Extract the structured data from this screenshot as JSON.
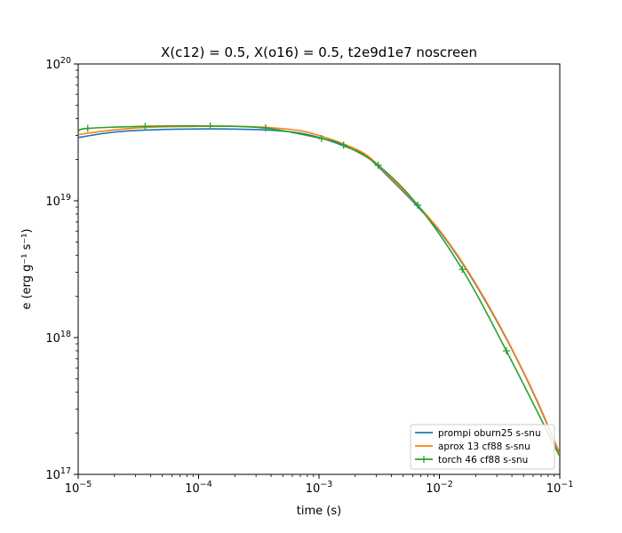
{
  "chart_data": {
    "type": "line",
    "title": "X(c12) = 0.5, X(o16) = 0.5, t2e9d1e7 noscreen",
    "xlabel": "time (s)",
    "ylabel": "e (erg g⁻¹ s⁻¹)",
    "xscale": "log",
    "yscale": "log",
    "xlim": [
      1e-05,
      0.1
    ],
    "ylim": [
      1e+17,
      1e+20
    ],
    "grid": false,
    "legend_position": "lower right",
    "x_ticks": [
      {
        "value": 1e-05,
        "base": "10",
        "exp": "−5"
      },
      {
        "value": 0.0001,
        "base": "10",
        "exp": "−4"
      },
      {
        "value": 0.001,
        "base": "10",
        "exp": "−3"
      },
      {
        "value": 0.01,
        "base": "10",
        "exp": "−2"
      },
      {
        "value": 0.1,
        "base": "10",
        "exp": "−1"
      }
    ],
    "y_ticks": [
      {
        "value": 1e+17,
        "base": "10",
        "exp": "17"
      },
      {
        "value": 1e+18,
        "base": "10",
        "exp": "18"
      },
      {
        "value": 1e+19,
        "base": "10",
        "exp": "19"
      },
      {
        "value": 1e+20,
        "base": "10",
        "exp": "20"
      }
    ],
    "series": [
      {
        "name": "prompi oburn25 s-snu",
        "color": "#1f77b4",
        "marker": "none",
        "x": [
          1e-05,
          2e-05,
          4e-05,
          0.0001,
          0.0002,
          0.0004,
          0.0007,
          0.001,
          0.0016,
          0.0025,
          0.004,
          0.0065,
          0.01,
          0.016,
          0.025,
          0.04,
          0.065,
          0.1
        ],
        "y": [
          2.9e+19,
          3.18e+19,
          3.3e+19,
          3.35e+19,
          3.34e+19,
          3.28e+19,
          3.12e+19,
          2.9e+19,
          2.52e+19,
          2.1e+19,
          1.42e+19,
          9.2e+18,
          6e+18,
          3.35e+18,
          1.75e+18,
          8.2e+17,
          3.4e+17,
          1.4e+17
        ]
      },
      {
        "name": "aprox 13 cf88 s-snu",
        "color": "#ff7f0e",
        "marker": "none",
        "x": [
          1e-05,
          2e-05,
          4e-05,
          0.0001,
          0.0002,
          0.0004,
          0.0007,
          0.001,
          0.0016,
          0.0025,
          0.004,
          0.0065,
          0.01,
          0.016,
          0.025,
          0.04,
          0.065,
          0.1
        ],
        "y": [
          3.05e+19,
          3.3e+19,
          3.45e+19,
          3.5e+19,
          3.5e+19,
          3.42e+19,
          3.25e+19,
          3e+19,
          2.6e+19,
          2.15e+19,
          1.45e+19,
          9.4e+18,
          6.1e+18,
          3.4e+18,
          1.78e+18,
          8.3e+17,
          3.45e+17,
          1.42e+17
        ]
      },
      {
        "name": "torch 46 cf88 s-snu",
        "color": "#2ca02c",
        "marker": "+",
        "x": [
          1e-05,
          1.2e-05,
          3.6e-05,
          0.000125,
          0.00036,
          0.00105,
          0.0016,
          0.0031,
          0.0066,
          0.0155,
          0.036,
          0.1
        ],
        "y": [
          3.22e+19,
          3.38e+19,
          3.5e+19,
          3.52e+19,
          3.4e+19,
          2.85e+19,
          2.55e+19,
          1.82e+19,
          9.3e+18,
          3.15e+18,
          8e+17,
          1.35e+17
        ]
      }
    ]
  }
}
